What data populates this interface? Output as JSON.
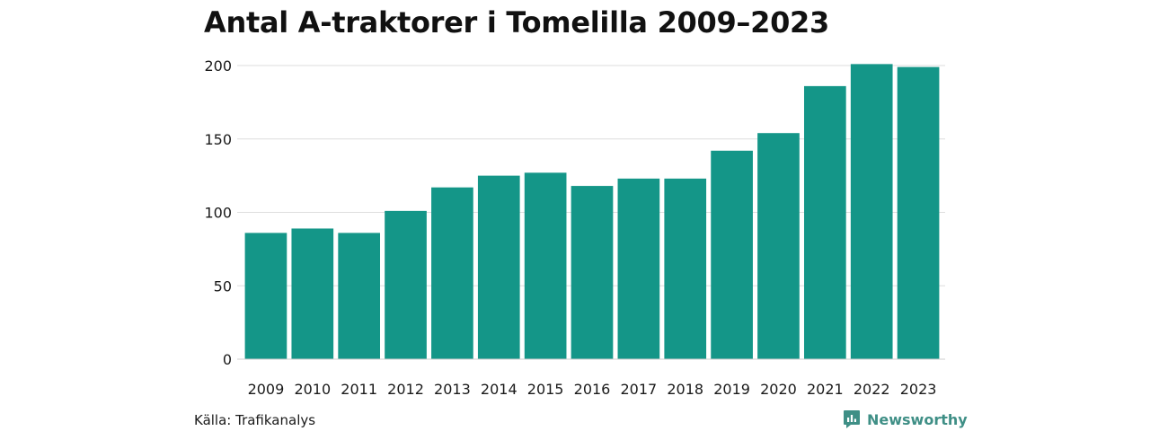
{
  "chart_data": {
    "type": "bar",
    "title": "Antal A-traktorer i Tomelilla 2009–2023",
    "categories": [
      "2009",
      "2010",
      "2011",
      "2012",
      "2013",
      "2014",
      "2015",
      "2016",
      "2017",
      "2018",
      "2019",
      "2020",
      "2021",
      "2022",
      "2023"
    ],
    "values": [
      86,
      89,
      86,
      101,
      117,
      125,
      127,
      118,
      123,
      123,
      142,
      154,
      186,
      201,
      199
    ],
    "ylim": [
      0,
      200
    ],
    "yticks": [
      0,
      50,
      100,
      150,
      200
    ],
    "xlabel": "",
    "ylabel": "",
    "grid": true,
    "bar_color": "#149688"
  },
  "footer": {
    "source": "Källa: Trafikanalys",
    "brand": "Newsworthy",
    "brand_icon": "newsworthy-logo-icon",
    "brand_color": "#3f8f86"
  }
}
